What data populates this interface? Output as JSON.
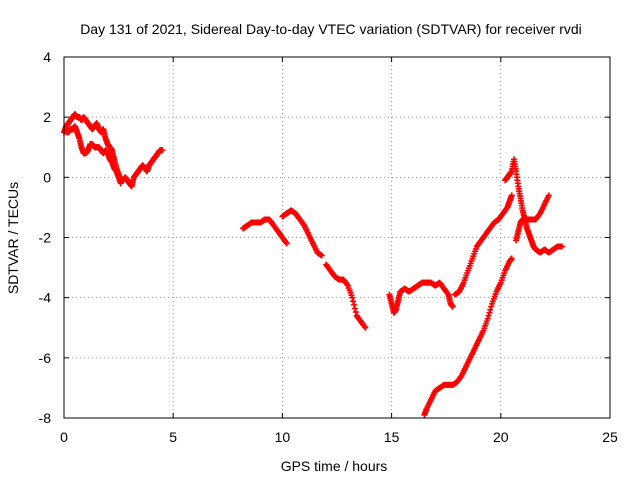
{
  "chart_data": {
    "type": "scatter",
    "title": "Day 131 of 2021, Sidereal Day-to-day VTEC variation (SDTVAR) for receiver rvdi",
    "xlabel": "GPS time / hours",
    "ylabel": "SDTVAR / TECUs",
    "xlim": [
      0,
      25
    ],
    "ylim": [
      -8,
      4
    ],
    "xticks": [
      0,
      5,
      10,
      15,
      20,
      25
    ],
    "yticks": [
      4,
      2,
      0,
      -2,
      -4,
      -6,
      -8
    ],
    "grid": true,
    "grid_style": "dotted",
    "marker": "plus",
    "series": [
      {
        "color": "#ff0000",
        "segments": [
          [
            [
              0.0,
              1.5
            ],
            [
              0.1,
              1.7
            ],
            [
              0.2,
              1.8
            ],
            [
              0.3,
              1.9
            ],
            [
              0.4,
              2.0
            ],
            [
              0.5,
              2.1
            ],
            [
              0.6,
              2.0
            ],
            [
              0.7,
              2.0
            ],
            [
              0.8,
              1.9
            ],
            [
              0.9,
              2.0
            ],
            [
              1.0,
              1.9
            ],
            [
              1.1,
              1.8
            ],
            [
              1.2,
              1.7
            ],
            [
              1.3,
              1.6
            ],
            [
              1.4,
              1.7
            ],
            [
              1.5,
              1.8
            ],
            [
              1.6,
              1.6
            ],
            [
              1.7,
              1.5
            ],
            [
              1.8,
              1.6
            ],
            [
              1.9,
              1.3
            ],
            [
              2.0,
              1.1
            ],
            [
              2.1,
              1.0
            ],
            [
              2.2,
              0.9
            ],
            [
              2.3,
              0.6
            ],
            [
              2.4,
              0.3
            ],
            [
              2.5,
              0.1
            ],
            [
              2.6,
              -0.1
            ],
            [
              2.7,
              -0.1
            ],
            [
              2.8,
              0.0
            ],
            [
              2.9,
              -0.1
            ],
            [
              3.0,
              -0.2
            ],
            [
              3.1,
              -0.3
            ],
            [
              3.2,
              0.0
            ],
            [
              3.3,
              0.1
            ],
            [
              3.4,
              0.2
            ],
            [
              3.5,
              0.3
            ],
            [
              3.6,
              0.4
            ],
            [
              3.7,
              0.3
            ],
            [
              3.8,
              0.2
            ],
            [
              3.9,
              0.4
            ],
            [
              4.0,
              0.5
            ],
            [
              4.1,
              0.6
            ],
            [
              4.2,
              0.7
            ],
            [
              4.3,
              0.8
            ],
            [
              4.4,
              0.9
            ],
            [
              4.5,
              0.9
            ]
          ],
          [
            [
              0.1,
              1.5
            ],
            [
              0.2,
              1.5
            ],
            [
              0.3,
              1.6
            ],
            [
              0.4,
              1.6
            ],
            [
              0.5,
              1.7
            ],
            [
              0.6,
              1.5
            ],
            [
              0.7,
              1.3
            ],
            [
              0.8,
              1.0
            ],
            [
              0.9,
              0.8
            ],
            [
              1.0,
              0.8
            ],
            [
              1.1,
              0.9
            ],
            [
              1.2,
              1.1
            ],
            [
              1.3,
              1.1
            ],
            [
              1.4,
              1.0
            ],
            [
              1.5,
              1.0
            ],
            [
              1.6,
              1.0
            ],
            [
              1.7,
              0.9
            ],
            [
              1.8,
              0.8
            ],
            [
              1.9,
              0.9
            ],
            [
              2.0,
              0.8
            ],
            [
              2.1,
              0.6
            ],
            [
              2.2,
              0.5
            ],
            [
              2.3,
              0.3
            ],
            [
              2.4,
              0.2
            ],
            [
              2.5,
              0.0
            ],
            [
              2.6,
              -0.2
            ]
          ],
          [
            [
              8.2,
              -1.7
            ],
            [
              8.4,
              -1.6
            ],
            [
              8.6,
              -1.5
            ],
            [
              8.8,
              -1.5
            ],
            [
              9.0,
              -1.5
            ],
            [
              9.2,
              -1.4
            ],
            [
              9.4,
              -1.4
            ],
            [
              9.6,
              -1.6
            ],
            [
              9.8,
              -1.8
            ],
            [
              10.0,
              -2.0
            ],
            [
              10.2,
              -2.2
            ]
          ],
          [
            [
              10.0,
              -1.3
            ],
            [
              10.2,
              -1.2
            ],
            [
              10.4,
              -1.1
            ],
            [
              10.6,
              -1.2
            ],
            [
              10.8,
              -1.4
            ],
            [
              11.0,
              -1.6
            ],
            [
              11.2,
              -1.9
            ],
            [
              11.4,
              -2.2
            ],
            [
              11.6,
              -2.5
            ],
            [
              11.8,
              -2.6
            ]
          ],
          [
            [
              12.0,
              -2.9
            ],
            [
              12.2,
              -3.1
            ],
            [
              12.4,
              -3.3
            ],
            [
              12.6,
              -3.4
            ],
            [
              12.8,
              -3.4
            ],
            [
              13.0,
              -3.6
            ],
            [
              13.2,
              -4.0
            ],
            [
              13.4,
              -4.6
            ],
            [
              13.6,
              -4.8
            ],
            [
              13.8,
              -5.0
            ]
          ],
          [
            [
              14.9,
              -3.9
            ],
            [
              15.0,
              -4.2
            ],
            [
              15.1,
              -4.5
            ],
            [
              15.2,
              -4.4
            ],
            [
              15.3,
              -4.1
            ],
            [
              15.4,
              -3.8
            ],
            [
              15.6,
              -3.7
            ],
            [
              15.8,
              -3.8
            ],
            [
              16.0,
              -3.7
            ],
            [
              16.2,
              -3.6
            ],
            [
              16.4,
              -3.5
            ],
            [
              16.6,
              -3.5
            ],
            [
              16.8,
              -3.5
            ],
            [
              17.0,
              -3.6
            ],
            [
              17.2,
              -3.5
            ],
            [
              17.4,
              -3.7
            ],
            [
              17.6,
              -3.9
            ],
            [
              17.7,
              -4.2
            ],
            [
              17.8,
              -4.3
            ]
          ],
          [
            [
              17.9,
              -3.9
            ],
            [
              18.1,
              -3.8
            ],
            [
              18.3,
              -3.5
            ],
            [
              18.5,
              -3.1
            ],
            [
              18.7,
              -2.7
            ],
            [
              18.9,
              -2.3
            ],
            [
              19.1,
              -2.1
            ],
            [
              19.3,
              -1.9
            ],
            [
              19.5,
              -1.7
            ],
            [
              19.7,
              -1.5
            ],
            [
              19.9,
              -1.4
            ],
            [
              20.1,
              -1.2
            ],
            [
              20.3,
              -1.0
            ],
            [
              20.4,
              -0.8
            ],
            [
              20.5,
              -0.6
            ]
          ],
          [
            [
              16.5,
              -7.9
            ],
            [
              16.6,
              -7.7
            ],
            [
              16.8,
              -7.4
            ],
            [
              17.0,
              -7.1
            ],
            [
              17.2,
              -7.0
            ],
            [
              17.4,
              -6.9
            ],
            [
              17.6,
              -6.9
            ],
            [
              17.8,
              -6.9
            ],
            [
              18.0,
              -6.8
            ],
            [
              18.2,
              -6.6
            ],
            [
              18.4,
              -6.3
            ],
            [
              18.6,
              -6.0
            ],
            [
              18.8,
              -5.7
            ],
            [
              19.0,
              -5.4
            ],
            [
              19.2,
              -5.1
            ],
            [
              19.4,
              -4.7
            ],
            [
              19.6,
              -4.2
            ],
            [
              19.8,
              -3.8
            ],
            [
              20.0,
              -3.5
            ],
            [
              20.2,
              -3.1
            ],
            [
              20.4,
              -2.8
            ],
            [
              20.5,
              -2.7
            ]
          ],
          [
            [
              20.2,
              -0.1
            ],
            [
              20.3,
              0.0
            ],
            [
              20.4,
              0.1
            ],
            [
              20.5,
              0.2
            ],
            [
              20.6,
              0.6
            ],
            [
              20.7,
              0.2
            ],
            [
              20.8,
              -0.3
            ],
            [
              20.9,
              -0.7
            ],
            [
              21.0,
              -1.1
            ],
            [
              21.1,
              -1.4
            ],
            [
              21.2,
              -1.7
            ],
            [
              21.3,
              -1.9
            ],
            [
              21.4,
              -2.1
            ],
            [
              21.5,
              -2.3
            ],
            [
              21.6,
              -2.4
            ],
            [
              21.8,
              -2.5
            ],
            [
              22.0,
              -2.4
            ],
            [
              22.2,
              -2.5
            ],
            [
              22.4,
              -2.4
            ],
            [
              22.6,
              -2.3
            ],
            [
              22.8,
              -2.3
            ]
          ],
          [
            [
              20.7,
              -2.1
            ],
            [
              20.8,
              -1.8
            ],
            [
              20.9,
              -1.5
            ],
            [
              21.0,
              -1.4
            ],
            [
              21.2,
              -1.4
            ],
            [
              21.4,
              -1.4
            ],
            [
              21.6,
              -1.4
            ],
            [
              21.8,
              -1.2
            ],
            [
              22.0,
              -0.9
            ],
            [
              22.2,
              -0.6
            ]
          ]
        ]
      }
    ]
  }
}
